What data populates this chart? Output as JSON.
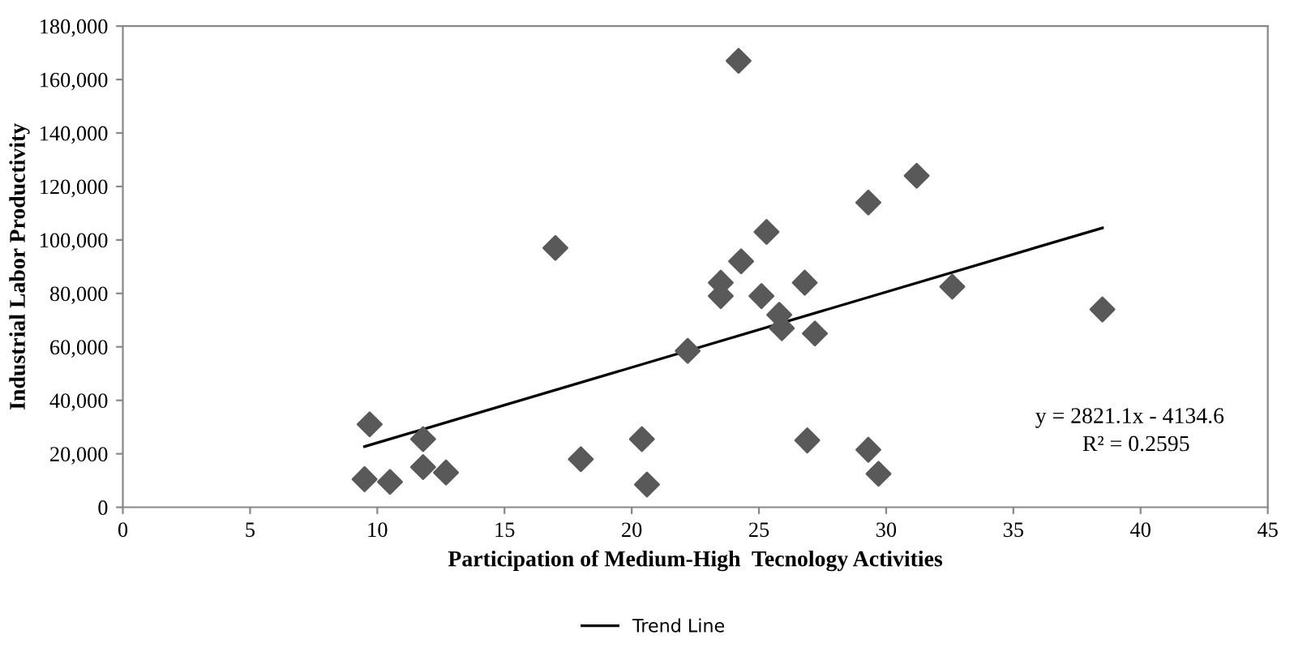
{
  "chart_data": {
    "type": "scatter",
    "xlabel": "Participation of Medium-High  Tecnology Activities",
    "ylabel": "Industrial Labor Productivity",
    "xlim": [
      0,
      45
    ],
    "xticks": [
      0,
      5,
      10,
      15,
      20,
      25,
      30,
      35,
      40,
      45
    ],
    "ylim": [
      0,
      180000
    ],
    "yticks": [
      {
        "value": 0,
        "label": "0"
      },
      {
        "value": 20000,
        "label": "20,000"
      },
      {
        "value": 40000,
        "label": "40,000"
      },
      {
        "value": 60000,
        "label": "60,000"
      },
      {
        "value": 80000,
        "label": "80,000"
      },
      {
        "value": 100000,
        "label": "100,000"
      },
      {
        "value": 120000,
        "label": "120,000"
      },
      {
        "value": 140000,
        "label": "140,000"
      },
      {
        "value": 160000,
        "label": "160,000"
      },
      {
        "value": 180000,
        "label": "180,000"
      }
    ],
    "grid": false,
    "legend": "bottom",
    "annotations": [
      "y = 2821.1x - 4134.6",
      "R² = 0.2595"
    ],
    "series": [
      {
        "marker": "diamond",
        "color": "#595959",
        "x": [
          9.5,
          9.7,
          10.5,
          11.8,
          11.8,
          12.7,
          17,
          18,
          20.4,
          20.6,
          22.2,
          23.5,
          23.5,
          24.2,
          24.3,
          25.1,
          25.3,
          25.8,
          25.9,
          26.8,
          26.9,
          27.2,
          29.3,
          29.3,
          29.7,
          31.2,
          32.6,
          38.5
        ],
        "values": [
          10500,
          31000,
          9500,
          25500,
          15000,
          13000,
          97000,
          18000,
          25500,
          8500,
          58500,
          84000,
          79000,
          167000,
          92000,
          79000,
          103000,
          72000,
          67000,
          84000,
          25000,
          65000,
          114000,
          21500,
          12500,
          124000,
          82500,
          74000
        ]
      },
      {
        "type": "line",
        "name": "Trend Line",
        "color": "#000000",
        "marker": "none",
        "line_style": "solid",
        "x": [
          9.5,
          38.5
        ],
        "values": [
          22700,
          104500
        ]
      }
    ]
  }
}
